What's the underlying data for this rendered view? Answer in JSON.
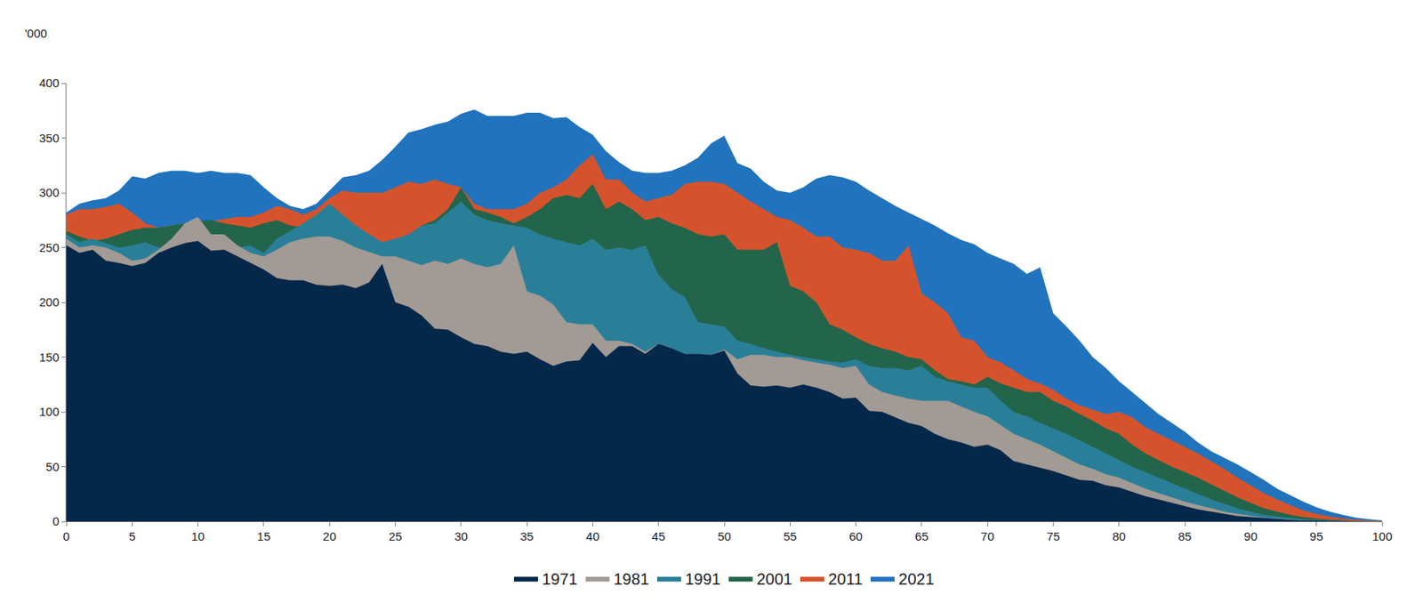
{
  "chart_data": {
    "type": "area",
    "stacked": false,
    "y_label": "'000",
    "x": [
      0,
      1,
      2,
      3,
      4,
      5,
      6,
      7,
      8,
      9,
      10,
      11,
      12,
      13,
      14,
      15,
      16,
      17,
      18,
      19,
      20,
      21,
      22,
      23,
      24,
      25,
      26,
      27,
      28,
      29,
      30,
      31,
      32,
      33,
      34,
      35,
      36,
      37,
      38,
      39,
      40,
      41,
      42,
      43,
      44,
      45,
      46,
      47,
      48,
      49,
      50,
      51,
      52,
      53,
      54,
      55,
      56,
      57,
      58,
      59,
      60,
      61,
      62,
      63,
      64,
      65,
      66,
      67,
      68,
      69,
      70,
      71,
      72,
      73,
      74,
      75,
      76,
      77,
      78,
      79,
      80,
      81,
      82,
      83,
      84,
      85,
      86,
      87,
      88,
      89,
      90,
      91,
      92,
      93,
      94,
      95,
      96,
      97,
      98,
      99,
      100
    ],
    "xlim": [
      0,
      100
    ],
    "xticks": [
      0,
      5,
      10,
      15,
      20,
      25,
      30,
      35,
      40,
      45,
      50,
      55,
      60,
      65,
      70,
      75,
      80,
      85,
      90,
      95,
      100
    ],
    "ylim": [
      0,
      400
    ],
    "yticks": [
      0,
      50,
      100,
      150,
      200,
      250,
      300,
      350,
      400
    ],
    "grid": false,
    "legend": "bottom",
    "series": [
      {
        "name": "1971",
        "color": "#03284a",
        "values": [
          252,
          245,
          248,
          238,
          236,
          233,
          236,
          245,
          250,
          254,
          256,
          247,
          248,
          242,
          236,
          230,
          222,
          220,
          220,
          216,
          215,
          216,
          213,
          218,
          235,
          200,
          196,
          188,
          176,
          175,
          168,
          162,
          160,
          155,
          153,
          155,
          148,
          142,
          146,
          147,
          163,
          150,
          160,
          160,
          153,
          162,
          158,
          153,
          153,
          152,
          156,
          135,
          124,
          123,
          124,
          122,
          125,
          122,
          118,
          112,
          113,
          101,
          100,
          95,
          90,
          87,
          80,
          75,
          72,
          68,
          70,
          65,
          55,
          52,
          49,
          46,
          42,
          38,
          37,
          33,
          31,
          27,
          23,
          20,
          17,
          14,
          11,
          9,
          7,
          5,
          4,
          3,
          2,
          1.5,
          1,
          0.7,
          0.4,
          0.2,
          0.1,
          0.05,
          0
        ]
      },
      {
        "name": "1981",
        "color": "#a29a94",
        "values": [
          258,
          250,
          252,
          250,
          245,
          238,
          240,
          248,
          258,
          272,
          278,
          262,
          262,
          252,
          245,
          242,
          248,
          255,
          258,
          260,
          260,
          256,
          250,
          246,
          242,
          242,
          238,
          234,
          238,
          235,
          240,
          235,
          232,
          235,
          252,
          210,
          206,
          198,
          182,
          180,
          180,
          165,
          165,
          162,
          155,
          162,
          158,
          153,
          153,
          152,
          157,
          148,
          152,
          152,
          150,
          150,
          147,
          145,
          143,
          140,
          142,
          125,
          118,
          115,
          112,
          110,
          110,
          110,
          105,
          100,
          96,
          88,
          80,
          75,
          70,
          64,
          58,
          52,
          48,
          43,
          40,
          35,
          30,
          26,
          22,
          18,
          15,
          12,
          9,
          7,
          5,
          3.5,
          2.5,
          1.5,
          1,
          0.6,
          0.4,
          0.2,
          0.1,
          0.05,
          0
        ]
      },
      {
        "name": "1991",
        "color": "#2a7f98",
        "values": [
          262,
          255,
          258,
          254,
          250,
          252,
          255,
          250,
          248,
          246,
          250,
          258,
          252,
          250,
          252,
          245,
          258,
          265,
          272,
          280,
          290,
          280,
          270,
          262,
          255,
          258,
          262,
          270,
          272,
          282,
          292,
          280,
          275,
          272,
          270,
          268,
          262,
          258,
          255,
          252,
          258,
          248,
          250,
          248,
          252,
          225,
          212,
          205,
          182,
          180,
          178,
          165,
          162,
          158,
          155,
          152,
          150,
          148,
          146,
          145,
          148,
          142,
          140,
          140,
          138,
          142,
          132,
          128,
          125,
          122,
          122,
          110,
          100,
          96,
          90,
          85,
          80,
          74,
          68,
          62,
          56,
          50,
          45,
          40,
          35,
          30,
          25,
          20,
          16,
          12,
          9,
          6,
          4.5,
          3,
          2,
          1.2,
          0.8,
          0.4,
          0.2,
          0.1,
          0
        ]
      },
      {
        "name": "2001",
        "color": "#23654a",
        "values": [
          265,
          260,
          256,
          258,
          262,
          266,
          268,
          268,
          270,
          272,
          274,
          275,
          272,
          270,
          268,
          272,
          275,
          270,
          268,
          275,
          280,
          272,
          262,
          258,
          252,
          255,
          258,
          270,
          275,
          285,
          305,
          285,
          282,
          278,
          272,
          278,
          285,
          295,
          298,
          295,
          308,
          285,
          292,
          285,
          275,
          278,
          272,
          268,
          262,
          260,
          262,
          248,
          248,
          248,
          255,
          215,
          210,
          200,
          180,
          175,
          168,
          162,
          158,
          155,
          150,
          148,
          138,
          130,
          128,
          125,
          132,
          126,
          122,
          118,
          118,
          110,
          105,
          98,
          92,
          85,
          80,
          70,
          62,
          56,
          50,
          45,
          40,
          34,
          28,
          22,
          17,
          12,
          9,
          6,
          4,
          2.5,
          1.6,
          0.9,
          0.5,
          0.25,
          0.1
        ]
      },
      {
        "name": "2011",
        "color": "#d5532c",
        "values": [
          280,
          285,
          285,
          287,
          290,
          282,
          272,
          268,
          270,
          272,
          272,
          274,
          276,
          278,
          278,
          282,
          288,
          285,
          280,
          285,
          295,
          302,
          300,
          300,
          300,
          305,
          310,
          308,
          312,
          308,
          305,
          290,
          285,
          285,
          285,
          290,
          300,
          305,
          312,
          325,
          335,
          312,
          312,
          300,
          292,
          295,
          298,
          308,
          310,
          310,
          308,
          300,
          292,
          285,
          278,
          275,
          268,
          260,
          260,
          250,
          248,
          245,
          238,
          238,
          252,
          208,
          200,
          190,
          168,
          165,
          150,
          145,
          138,
          130,
          126,
          120,
          112,
          106,
          102,
          98,
          100,
          95,
          86,
          80,
          74,
          68,
          62,
          55,
          48,
          40,
          33,
          26,
          20,
          15,
          10,
          7,
          4.5,
          2.8,
          1.6,
          0.9,
          0.5
        ]
      },
      {
        "name": "2021",
        "color": "#2173bd",
        "values": [
          282,
          290,
          293,
          295,
          302,
          315,
          313,
          318,
          320,
          320,
          318,
          320,
          318,
          318,
          316,
          305,
          295,
          288,
          285,
          290,
          302,
          314,
          316,
          320,
          330,
          342,
          355,
          358,
          362,
          365,
          372,
          376,
          370,
          370,
          370,
          373,
          373,
          368,
          369,
          360,
          353,
          338,
          328,
          320,
          318,
          318,
          320,
          325,
          332,
          345,
          352,
          327,
          322,
          310,
          302,
          300,
          305,
          313,
          316,
          314,
          310,
          302,
          295,
          288,
          282,
          276,
          270,
          263,
          257,
          253,
          245,
          240,
          235,
          226,
          232,
          190,
          178,
          165,
          150,
          140,
          128,
          118,
          108,
          98,
          90,
          82,
          72,
          64,
          58,
          52,
          45,
          38,
          30,
          24,
          18,
          13,
          9,
          6,
          3.5,
          2,
          1
        ]
      }
    ]
  }
}
